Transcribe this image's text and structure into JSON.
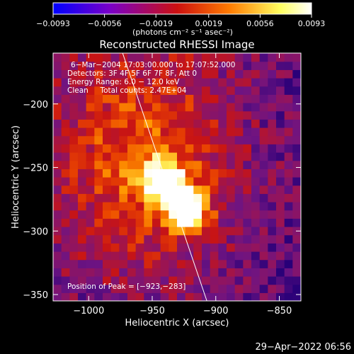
{
  "chart_data": {
    "type": "heatmap",
    "title": "Reconstructed RHESSI Image",
    "xlabel": "Heliocentric X (arcsec)",
    "ylabel": "Heliocentric Y (arcsec)",
    "xlim": [
      -1028,
      -833
    ],
    "ylim": [
      -355,
      -160
    ],
    "x_ticks": [
      -1000,
      -950,
      -900,
      -850
    ],
    "x_tick_labels": [
      "−1000",
      "−950",
      "−900",
      "−850"
    ],
    "y_ticks": [
      -200,
      -250,
      -300,
      -350
    ],
    "y_tick_labels": [
      "−200",
      "−250",
      "−300",
      "−350"
    ],
    "colorbar": {
      "min": -0.0093,
      "max": 0.0093,
      "ticks": [
        -0.0093,
        -0.0056,
        -0.0019,
        0.0019,
        0.0056,
        0.0093
      ],
      "tick_labels": [
        "−0.0093",
        "−0.0056",
        "−0.0019",
        "0.0019",
        "0.0056",
        "0.0093"
      ],
      "units_label": "(photons cm⁻² s⁻¹ asec⁻²)",
      "colors": [
        "#0000ff",
        "#7a00c8",
        "#cc1010",
        "#ff7a00",
        "#ffff60",
        "#ffffff"
      ]
    },
    "annotations": {
      "time": "6−Mar−2004 17:03:00.000 to 17:07:52.000",
      "detectors": "Detectors: 3F 4F 5F 6F 7F 8F, Att 0",
      "energy": "Energy Range: 6.0 − 12.0 keV",
      "clean": "Clean     Total counts: 2.47E+04",
      "peak": "Position of Peak = [−923,−283]"
    },
    "peaks": [
      {
        "x": -942,
        "y": -260,
        "value": 0.0093
      },
      {
        "x": -923,
        "y": -283,
        "value": 0.0093
      }
    ],
    "limb": [
      [
        -975,
        -155
      ],
      [
        -907,
        -355
      ]
    ],
    "pixel_size_arcsec": 6.5
  },
  "footer": {
    "date": "29−Apr−2022 06:56"
  }
}
